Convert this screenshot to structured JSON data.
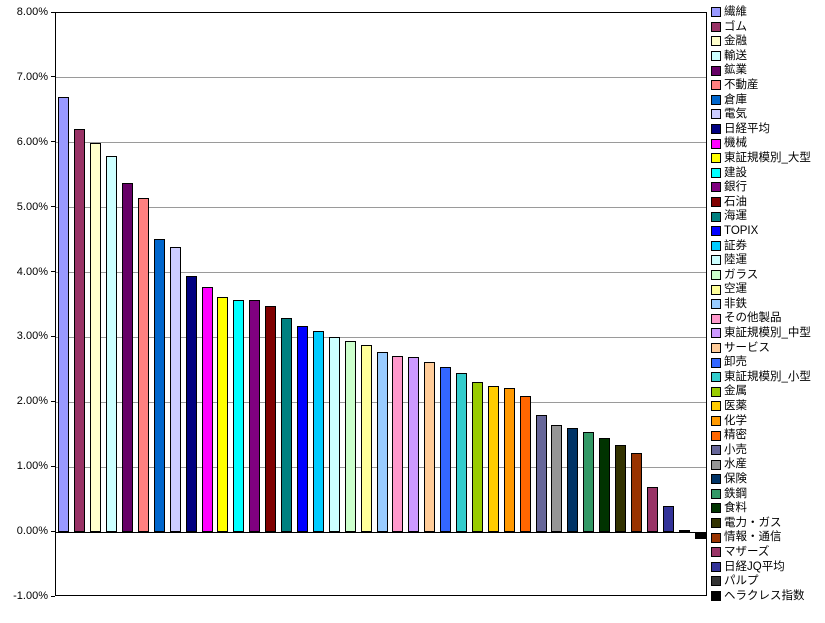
{
  "chart_data": {
    "type": "bar",
    "title": "",
    "xlabel": "",
    "ylabel": "",
    "grid": true,
    "legend_position": "right",
    "ylim": [
      -1,
      8
    ],
    "y_axis": {
      "tick_values": [
        8,
        7,
        6,
        5,
        4,
        3,
        2,
        1,
        0,
        -1
      ],
      "tick_labels": [
        "8.00%",
        "7.00%",
        "6.00%",
        "5.00%",
        "4.00%",
        "3.00%",
        "2.00%",
        "1.00%",
        "0.00%",
        "-1.00%"
      ]
    },
    "categories": [
      "繊維",
      "ゴム",
      "金融",
      "輸送",
      "鉱業",
      "不動産",
      "倉庫",
      "電気",
      "日経平均",
      "機械",
      "東証規模別_大型",
      "建設",
      "銀行",
      "石油",
      "海運",
      "TOPIX",
      "証券",
      "陸運",
      "ガラス",
      "空運",
      "非鉄",
      "その他製品",
      "東証規模別_中型",
      "サービス",
      "卸売",
      "東証規模別_小型",
      "金属",
      "医薬",
      "化学",
      "精密",
      "小売",
      "水産",
      "保険",
      "鉄鋼",
      "食料",
      "電力・ガス",
      "情報・通信",
      "マザーズ",
      "日経JQ平均",
      "パルプ",
      "ヘラクレス指数"
    ],
    "values": [
      6.7,
      6.22,
      6.0,
      5.8,
      5.38,
      5.15,
      4.52,
      4.4,
      3.95,
      3.78,
      3.62,
      3.58,
      3.57,
      3.48,
      3.3,
      3.17,
      3.1,
      3.0,
      2.95,
      2.88,
      2.78,
      2.72,
      2.7,
      2.62,
      2.55,
      2.45,
      2.32,
      2.25,
      2.22,
      2.1,
      1.8,
      1.65,
      1.6,
      1.55,
      1.45,
      1.35,
      1.22,
      0.7,
      0.4,
      0.03,
      -0.1
    ],
    "colors": [
      "#9999FF",
      "#993366",
      "#FFFFCC",
      "#CCFFFF",
      "#660066",
      "#FF8080",
      "#0066CC",
      "#CCCCFF",
      "#000080",
      "#FF00FF",
      "#FFFF00",
      "#00FFFF",
      "#800080",
      "#800000",
      "#008080",
      "#0000FF",
      "#00CCFF",
      "#CCFFFF",
      "#CCFFCC",
      "#FFFF99",
      "#99CCFF",
      "#FF99CC",
      "#CC99FF",
      "#FFCC99",
      "#3366FF",
      "#33CCCC",
      "#99CC00",
      "#FFCC00",
      "#FF9900",
      "#FF6600",
      "#666699",
      "#969696",
      "#003366",
      "#339966",
      "#003300",
      "#333300",
      "#993300",
      "#993366",
      "#333399",
      "#333333",
      "#000000"
    ],
    "plot": {
      "background": "#ffffff",
      "border_color": "#000000",
      "gridline_color": "#9a9a9a"
    }
  }
}
